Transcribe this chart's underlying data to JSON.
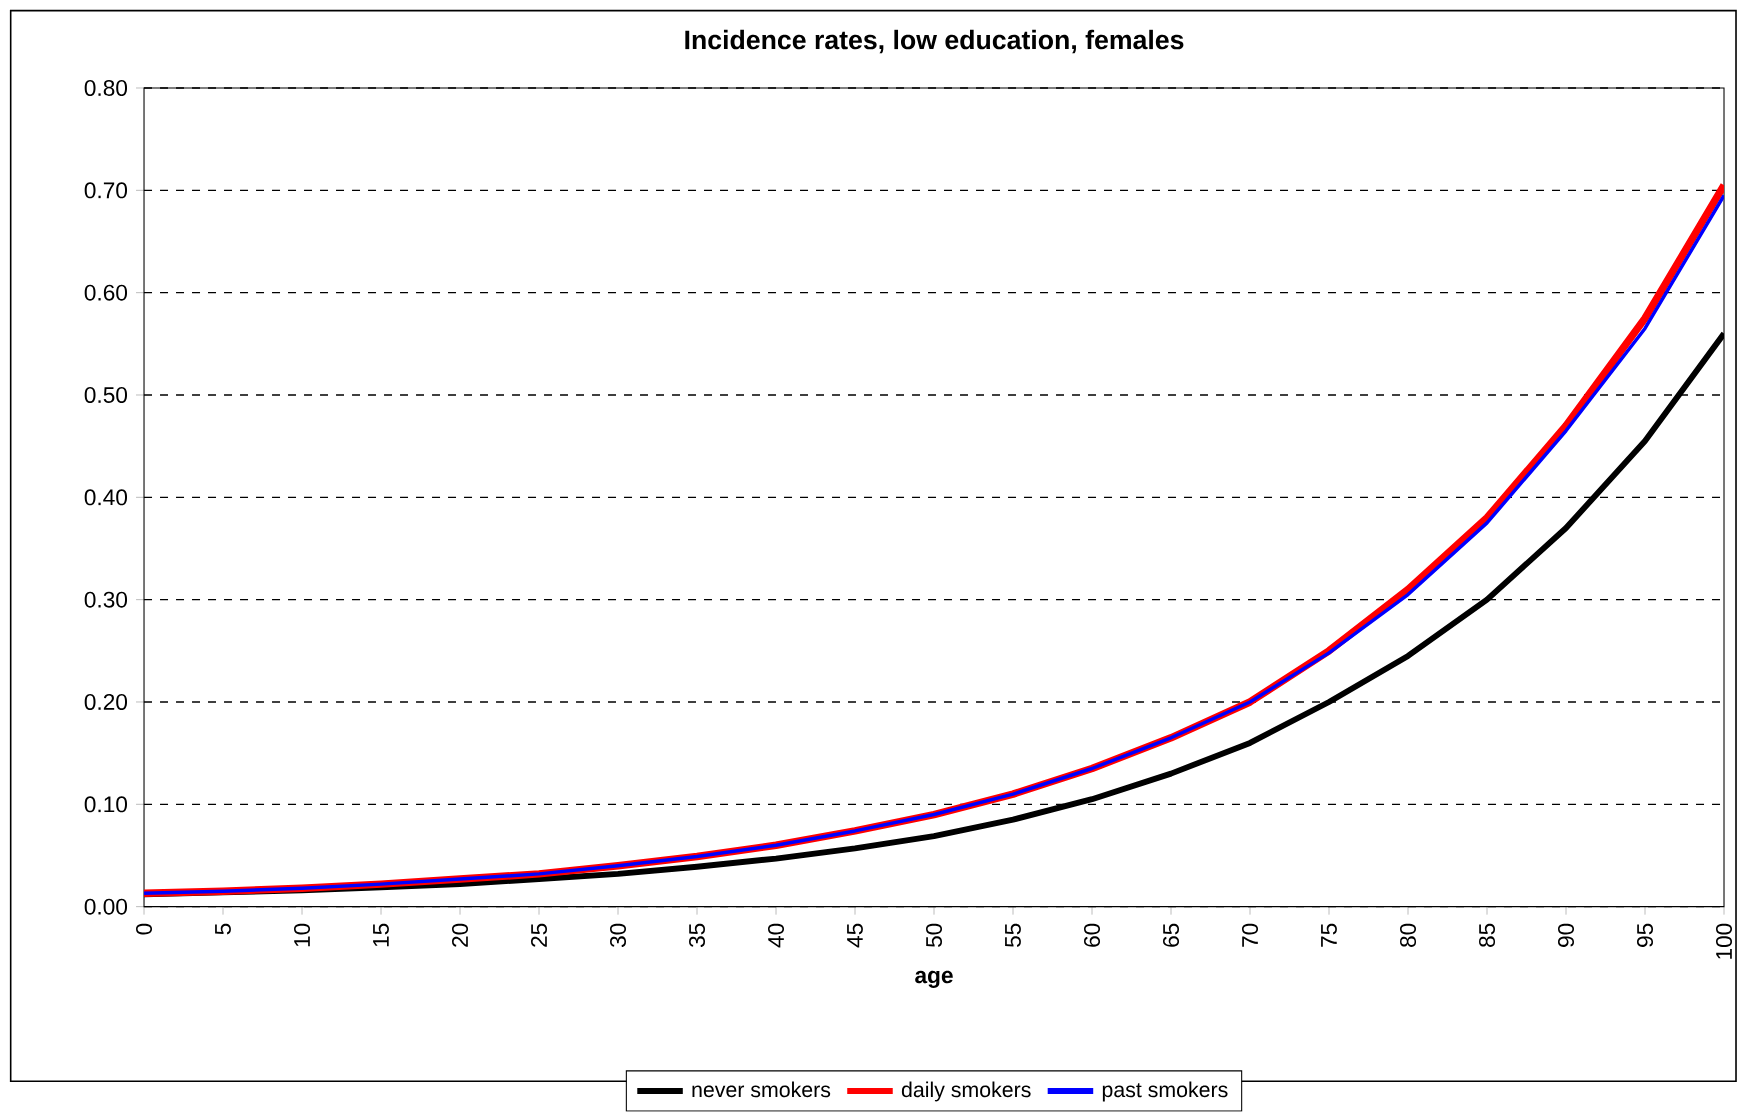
{
  "chart_data": {
    "type": "line",
    "title": "Incidence rates, low education, females",
    "xlabel": "age",
    "x": [
      0,
      5,
      10,
      15,
      20,
      25,
      30,
      35,
      40,
      45,
      50,
      55,
      60,
      65,
      70,
      75,
      80,
      85,
      90,
      95,
      100
    ],
    "series": [
      {
        "name": "never smokers",
        "color": "#000000",
        "values": [
          0.012,
          0.014,
          0.016,
          0.019,
          0.022,
          0.027,
          0.032,
          0.039,
          0.047,
          0.057,
          0.069,
          0.085,
          0.105,
          0.13,
          0.16,
          0.2,
          0.245,
          0.3,
          0.37,
          0.455,
          0.56
        ]
      },
      {
        "name": "daily smokers",
        "color": "#ff0000",
        "values": [
          0.013,
          0.015,
          0.018,
          0.022,
          0.027,
          0.032,
          0.04,
          0.049,
          0.06,
          0.074,
          0.09,
          0.11,
          0.135,
          0.165,
          0.2,
          0.25,
          0.31,
          0.38,
          0.47,
          0.575,
          0.705
        ]
      },
      {
        "name": "past smokers",
        "color": "#0000ff",
        "values": [
          0.013,
          0.015,
          0.018,
          0.022,
          0.027,
          0.032,
          0.04,
          0.049,
          0.06,
          0.074,
          0.09,
          0.11,
          0.135,
          0.165,
          0.2,
          0.248,
          0.305,
          0.375,
          0.465,
          0.565,
          0.695
        ]
      }
    ],
    "xlim": [
      0,
      100
    ],
    "xticks": [
      0,
      5,
      10,
      15,
      20,
      25,
      30,
      35,
      40,
      45,
      50,
      55,
      60,
      65,
      70,
      75,
      80,
      85,
      90,
      95,
      100
    ],
    "ylim": [
      0,
      0.8
    ],
    "yticks": [
      {
        "value": 0,
        "label": "0.00"
      },
      {
        "value": 0.1,
        "label": "0.10"
      },
      {
        "value": 0.2,
        "label": "0.20"
      },
      {
        "value": 0.3,
        "label": "0.30"
      },
      {
        "value": 0.4,
        "label": "0.40"
      },
      {
        "value": 0.5,
        "label": "0.50"
      },
      {
        "value": 0.6,
        "label": "0.60"
      },
      {
        "value": 0.7,
        "label": "0.70"
      },
      {
        "value": 0.8,
        "label": "0.80"
      }
    ],
    "grid": "y",
    "legend": "bottom",
    "marker": "none",
    "line_style": "solid"
  }
}
